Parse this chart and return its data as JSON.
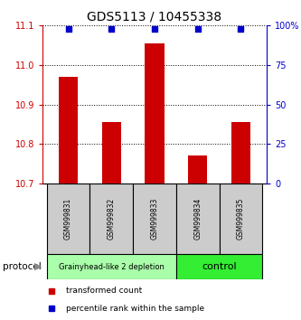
{
  "title": "GDS5113 / 10455338",
  "samples": [
    "GSM999831",
    "GSM999832",
    "GSM999833",
    "GSM999834",
    "GSM999835"
  ],
  "red_values": [
    10.97,
    10.855,
    11.055,
    10.77,
    10.855
  ],
  "blue_values": [
    98,
    98,
    98,
    98,
    98
  ],
  "ylim_left": [
    10.7,
    11.1
  ],
  "ylim_right": [
    0,
    100
  ],
  "yticks_left": [
    10.7,
    10.8,
    10.9,
    11.0,
    11.1
  ],
  "yticks_right": [
    0,
    25,
    50,
    75,
    100
  ],
  "groups": [
    {
      "label": "Grainyhead-like 2 depletion",
      "indices": [
        0,
        1,
        2
      ],
      "color": "#aaffaa"
    },
    {
      "label": "control",
      "indices": [
        3,
        4
      ],
      "color": "#33ee33"
    }
  ],
  "sample_box_color": "#cccccc",
  "protocol_label": "protocol",
  "bar_color": "#cc0000",
  "dot_color": "#0000cc",
  "bar_width": 0.45,
  "background_color": "#ffffff",
  "left_tick_color": "#cc0000",
  "right_tick_color": "#0000cc",
  "legend_red_label": "transformed count",
  "legend_blue_label": "percentile rank within the sample",
  "title_fontsize": 10,
  "tick_fontsize": 7,
  "sample_fontsize": 5.5,
  "proto_fontsize_small": 6,
  "proto_fontsize_large": 8
}
